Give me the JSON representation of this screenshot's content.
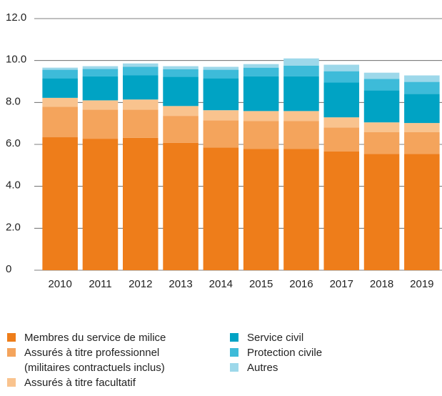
{
  "chart_data": {
    "type": "stacked_bar",
    "categories": [
      "2010",
      "2011",
      "2012",
      "2013",
      "2014",
      "2015",
      "2016",
      "2017",
      "2018",
      "2019"
    ],
    "series": [
      {
        "name": "Membres du service de milice",
        "color": "#ee7d1a",
        "values": [
          6.34,
          6.27,
          6.31,
          6.07,
          5.85,
          5.79,
          5.79,
          5.67,
          5.55,
          5.55
        ]
      },
      {
        "name": "Assurés à titre professionnel (militaires contractuels inclus)",
        "color": "#f4a45c",
        "values": [
          1.46,
          1.39,
          1.35,
          1.29,
          1.3,
          1.33,
          1.33,
          1.14,
          1.03,
          1.03
        ]
      },
      {
        "name": "Assurés à titre facultatif",
        "color": "#f9c38e",
        "values": [
          0.42,
          0.44,
          0.48,
          0.47,
          0.48,
          0.47,
          0.47,
          0.48,
          0.47,
          0.44
        ]
      },
      {
        "name": "Service civil",
        "color": "#00a3c4",
        "values": [
          0.93,
          1.14,
          1.15,
          1.39,
          1.52,
          1.66,
          1.66,
          1.66,
          1.53,
          1.39
        ]
      },
      {
        "name": "Protection civile",
        "color": "#3dbbd9",
        "values": [
          0.41,
          0.36,
          0.41,
          0.37,
          0.41,
          0.41,
          0.51,
          0.54,
          0.54,
          0.57
        ]
      },
      {
        "name": "Autres",
        "color": "#9dd8ea",
        "values": [
          0.1,
          0.13,
          0.16,
          0.14,
          0.14,
          0.17,
          0.34,
          0.31,
          0.3,
          0.31
        ]
      }
    ],
    "ylim": [
      0,
      12
    ],
    "yticks": [
      0,
      {
        "value": 2,
        "label": "2.0"
      },
      {
        "value": 4,
        "label": "4.0"
      },
      {
        "value": 6,
        "label": "6.0"
      },
      {
        "value": 8,
        "label": "8.0"
      },
      {
        "value": 10,
        "label": "10.0"
      },
      {
        "value": 12,
        "label": "12.0"
      }
    ],
    "grid": true
  }
}
